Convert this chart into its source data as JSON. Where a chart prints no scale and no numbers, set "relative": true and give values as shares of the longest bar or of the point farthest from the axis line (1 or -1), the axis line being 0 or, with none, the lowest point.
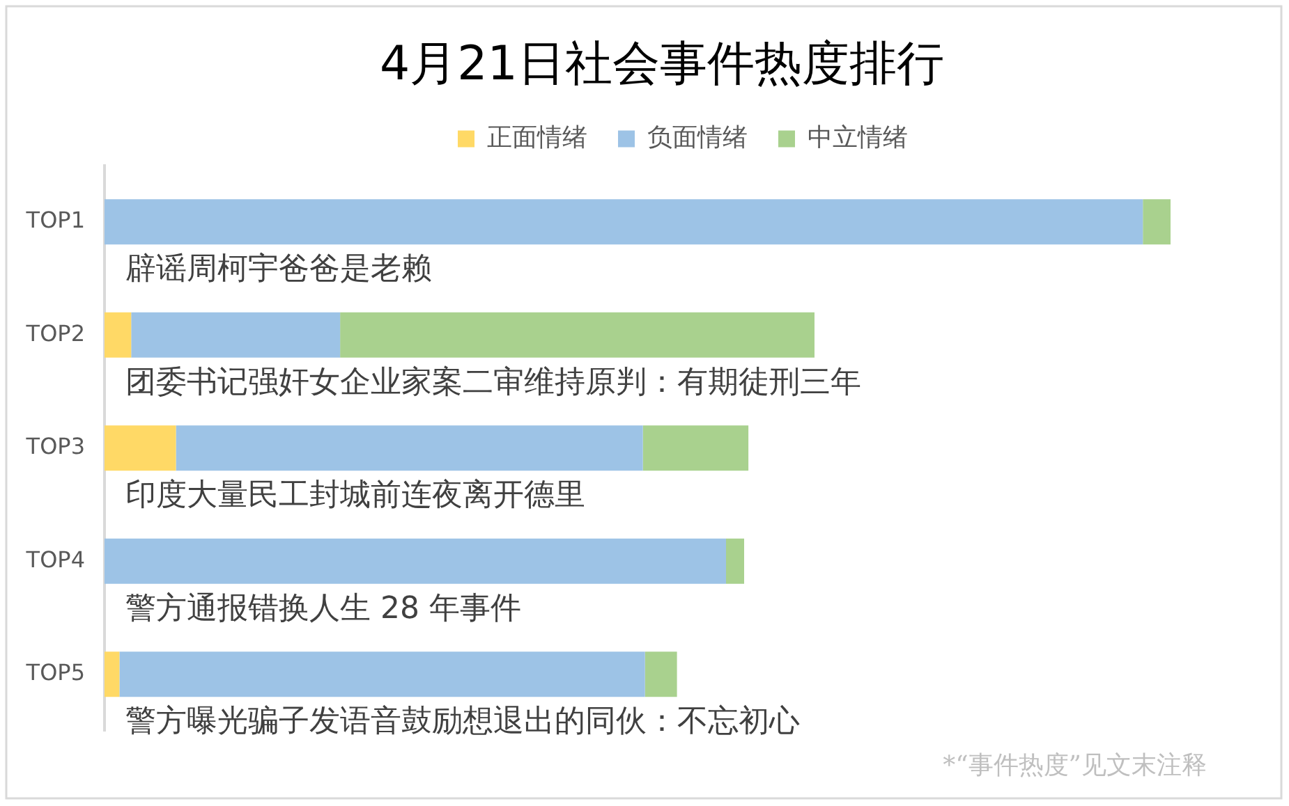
{
  "chart_data": {
    "type": "bar",
    "orientation": "horizontal",
    "stacked": true,
    "relative": true,
    "title": "4月21日社会事件热度排行",
    "legend": "top",
    "categories": [
      "TOP1",
      "TOP2",
      "TOP3",
      "TOP4",
      "TOP5"
    ],
    "series": [
      {
        "name": "正面情绪",
        "color": "#ffd966",
        "values": [
          null,
          0.025,
          0.067,
          null,
          0.014
        ]
      },
      {
        "name": "负面情绪",
        "color": "#9dc3e6",
        "values": [
          0.974,
          0.196,
          0.438,
          0.583,
          0.493
        ]
      },
      {
        "name": "中立情绪",
        "color": "#a9d18e",
        "values": [
          0.026,
          0.445,
          0.099,
          0.017,
          0.03
        ]
      }
    ],
    "annotations": [
      "辟谣周柯宇爸爸是老赖",
      "团委书记强奸女企业家案二审维持原判：有期徒刑三年",
      "印度大量民工封城前连夜离开德里",
      "警方通报错换人生 28 年事件",
      "警方曝光骗子发语音鼓励想退出的同伙：不忘初心",
      "*“事件热度”见文末注释"
    ]
  }
}
